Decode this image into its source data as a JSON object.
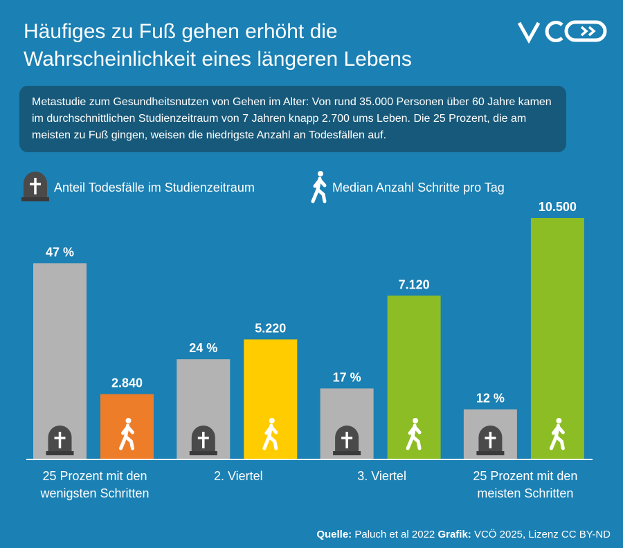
{
  "chart_data": {
    "type": "bar",
    "title": "Häufiges zu Fuß gehen erhöht die Wahrscheinlichkeit eines längeren Lebens",
    "description": "Metastudie zum Gesundheitsnutzen von Gehen im Alter: Von rund 35.000 Personen über 60 Jahre kamen im durchschnittlichen Studienzeitraum von 7 Jahren knapp 2.700 ums Leben. Die 25 Prozent, die am meisten zu Fuß gingen, weisen die niedrigste Anzahl an Todesfällen auf.",
    "categories": [
      "25 Prozent mit den wenigsten Schritten",
      "2. Viertel",
      "3. Viertel",
      "25 Prozent mit den meisten Schritten"
    ],
    "series": [
      {
        "name": "Anteil Todesfälle im Studienzeitraum",
        "color": "#b3b3b3",
        "axis": "y",
        "values": [
          47,
          24,
          17,
          12
        ],
        "value_labels": [
          "47 %",
          "24 %",
          "17 %",
          "12 %"
        ]
      },
      {
        "name": "Median Anzahl Schritte pro Tag",
        "colors": [
          "#ee7d2a",
          "#ffcc00",
          "#8cbd25",
          "#8cbd25"
        ],
        "axis": "y2",
        "values": [
          2840,
          5220,
          7120,
          10500
        ],
        "value_labels": [
          "2.840",
          "5.220",
          "7.120",
          "10.500"
        ]
      }
    ],
    "ylim": [
      0,
      58
    ],
    "y2lim": [
      0,
      10530
    ],
    "source": {
      "label": "Quelle:",
      "text": "Paluch et al 2022"
    },
    "credit": {
      "label": "Grafik:",
      "text": "VCÖ 2025, Lizenz CC BY-ND"
    }
  }
}
